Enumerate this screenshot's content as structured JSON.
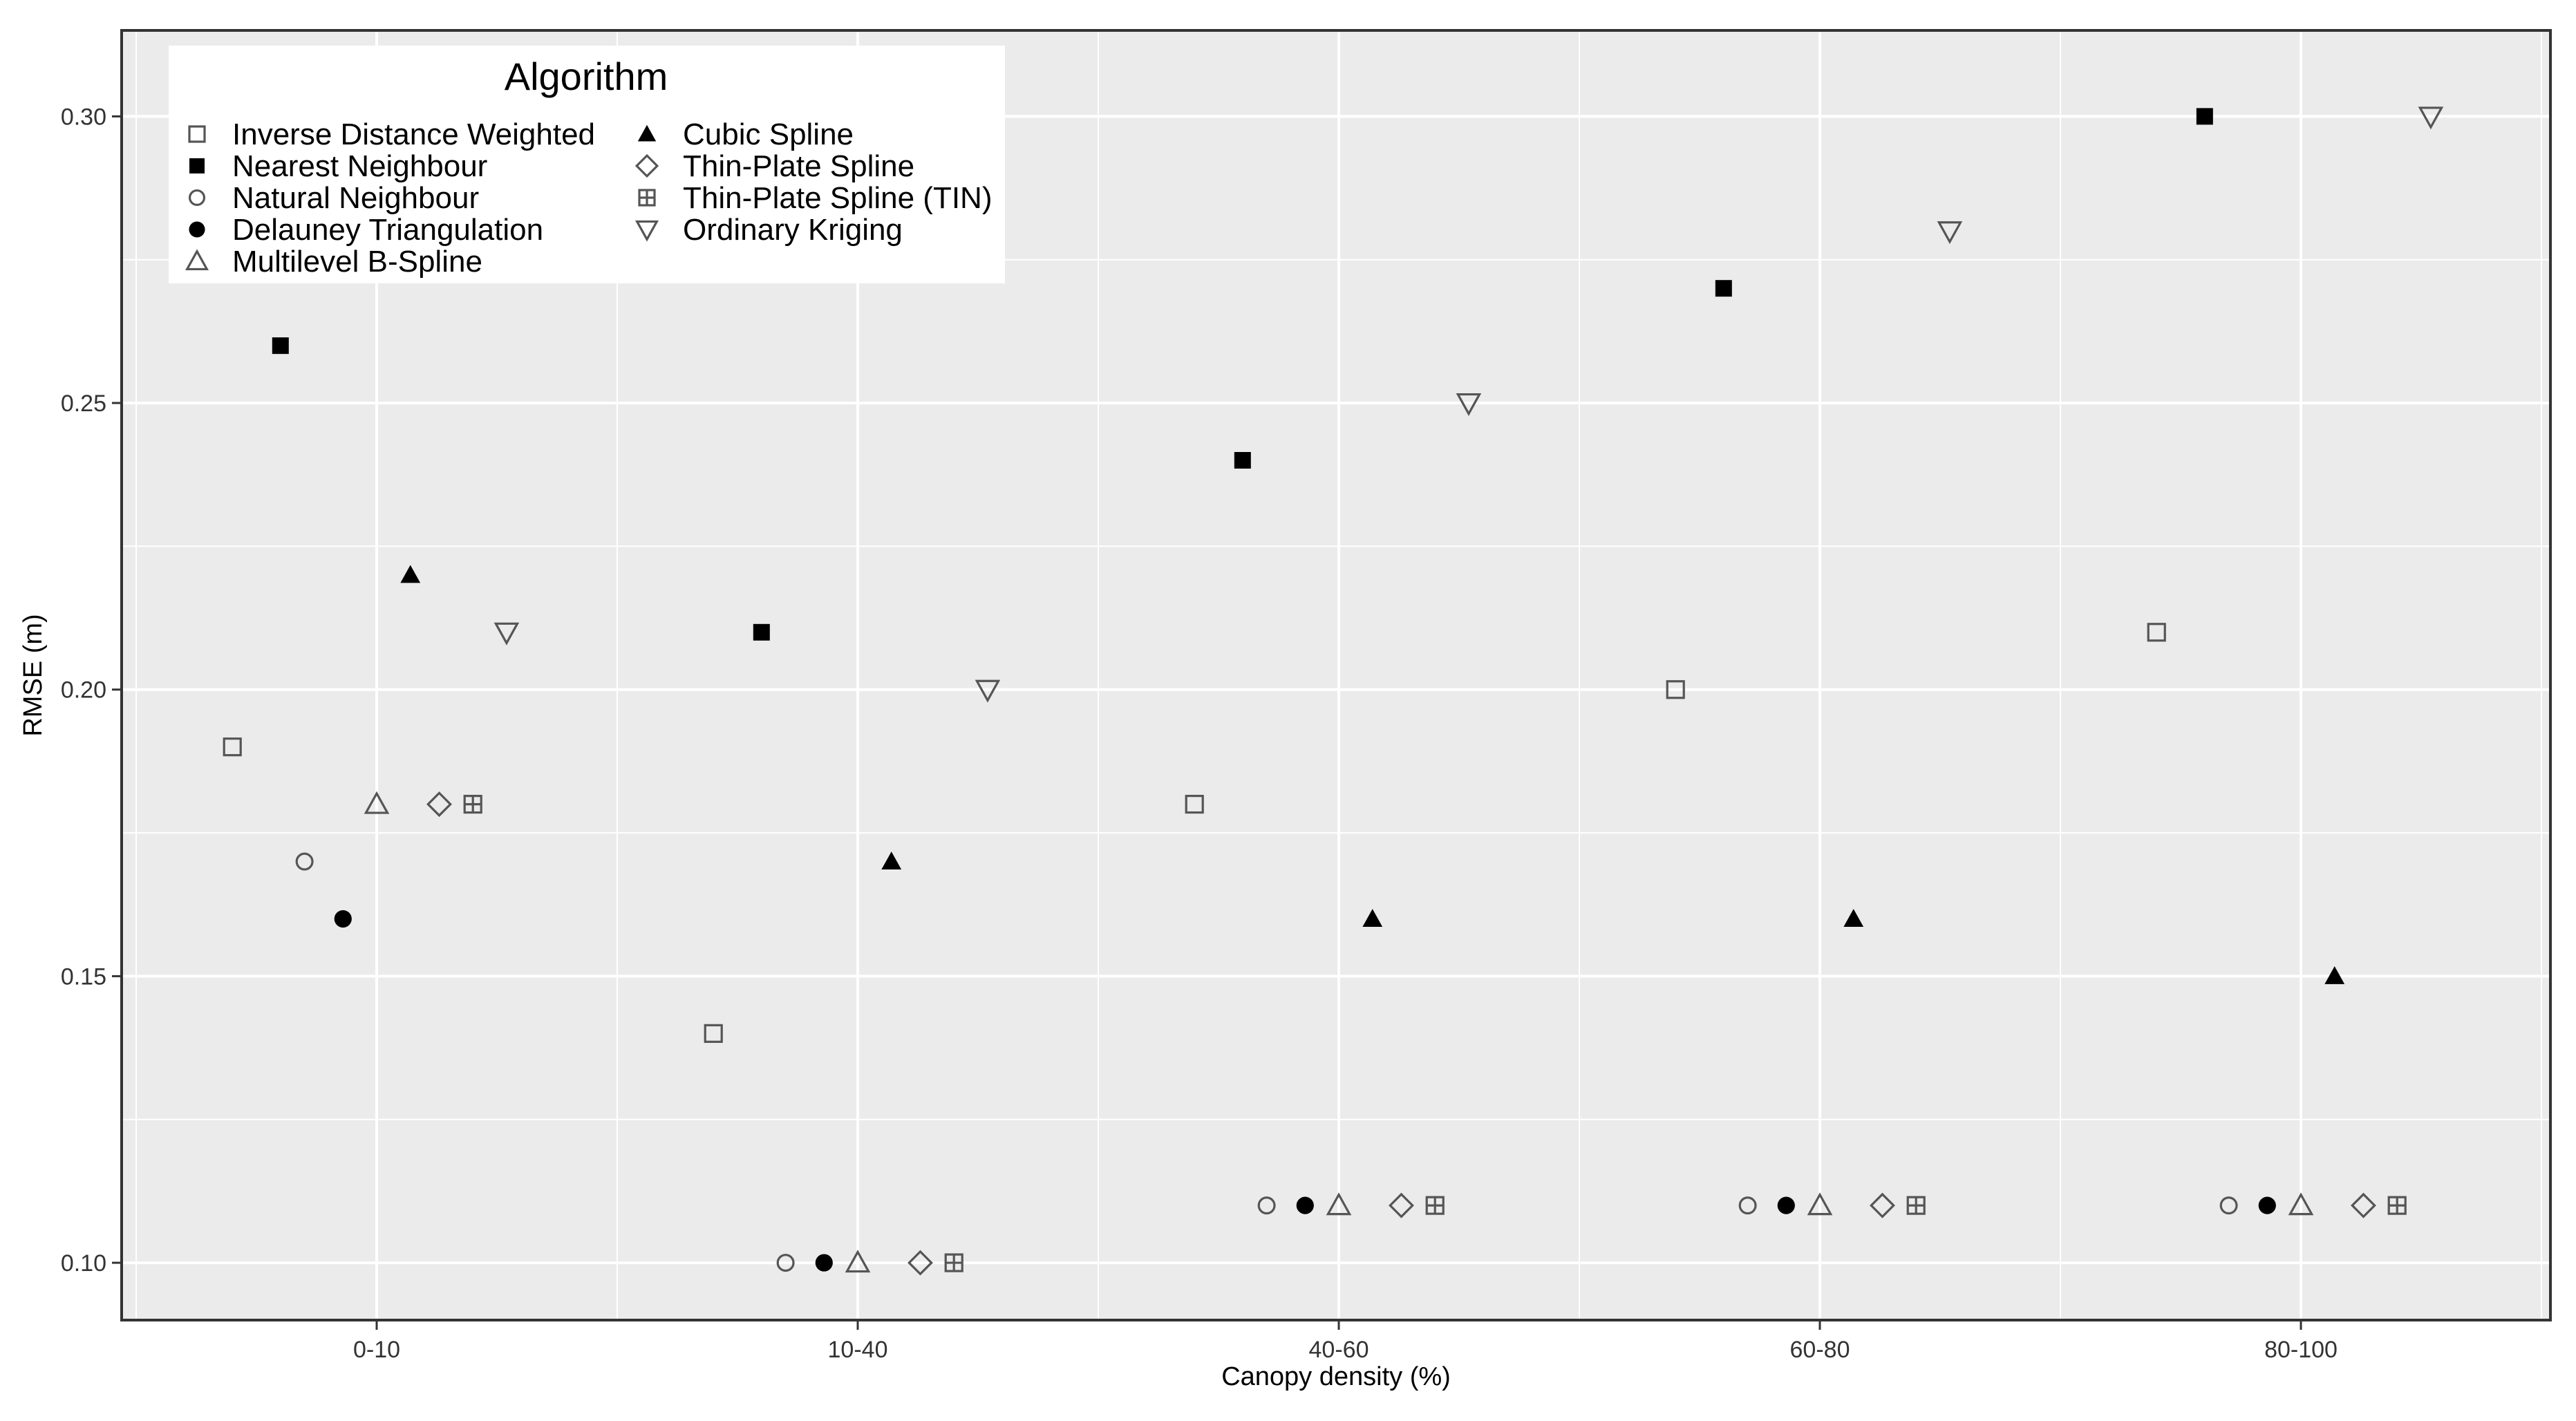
{
  "chart_data": {
    "type": "scatter",
    "xlabel": "Canopy density (%)",
    "ylabel": "RMSE (m)",
    "categories": [
      "0-10",
      "10-40",
      "40-60",
      "60-80",
      "80-100"
    ],
    "ylim": [
      0.09,
      0.315
    ],
    "yticks": [
      0.1,
      0.15,
      0.2,
      0.25,
      0.3
    ],
    "ytick_labels": [
      "0.10",
      "0.15",
      "0.20",
      "0.25",
      "0.30"
    ],
    "grid": true,
    "background": "#ebebeb",
    "legend": {
      "title": "Algorithm",
      "position": "top-left",
      "columns": 2
    },
    "series": [
      {
        "name": "Inverse Distance Weighted",
        "marker": "open-square",
        "offset": -0.3,
        "values": [
          0.19,
          0.14,
          0.18,
          0.2,
          0.21
        ]
      },
      {
        "name": "Nearest Neighbour",
        "marker": "filled-square",
        "offset": -0.2,
        "values": [
          0.26,
          0.21,
          0.24,
          0.27,
          0.3
        ]
      },
      {
        "name": "Natural Neighbour",
        "marker": "open-circle",
        "offset": -0.15,
        "values": [
          0.17,
          0.1,
          0.11,
          0.11,
          0.11
        ]
      },
      {
        "name": "Delauney Triangulation",
        "marker": "filled-circle",
        "offset": -0.07,
        "values": [
          0.16,
          0.1,
          0.11,
          0.11,
          0.11
        ]
      },
      {
        "name": "Multilevel B-Spline",
        "marker": "open-triangle-up",
        "offset": 0.0,
        "values": [
          0.18,
          0.1,
          0.11,
          0.11,
          0.11
        ]
      },
      {
        "name": "Cubic Spline",
        "marker": "filled-triangle-up",
        "offset": 0.07,
        "values": [
          0.22,
          0.17,
          0.16,
          0.16,
          0.15
        ]
      },
      {
        "name": "Thin-Plate Spline",
        "marker": "open-diamond",
        "offset": 0.13,
        "values": [
          0.18,
          0.1,
          0.11,
          0.11,
          0.11
        ]
      },
      {
        "name": "Thin-Plate Spline (TIN)",
        "marker": "square-plus",
        "offset": 0.2,
        "values": [
          0.18,
          0.1,
          0.11,
          0.11,
          0.11
        ]
      },
      {
        "name": "Ordinary Kriging",
        "marker": "open-triangle-down",
        "offset": 0.27,
        "values": [
          0.21,
          0.2,
          0.25,
          0.28,
          0.3
        ]
      }
    ]
  }
}
